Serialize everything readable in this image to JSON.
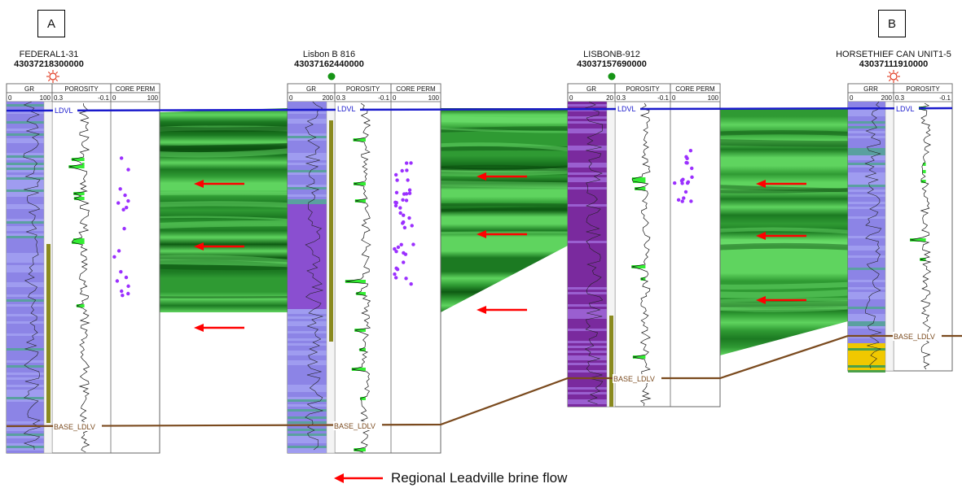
{
  "section_labels": {
    "a": "A",
    "b": "B"
  },
  "wells": [
    {
      "name": "FEDERAL1-31",
      "api": "43037218300000",
      "symbol": "sun-symbol",
      "tracks": [
        {
          "header": "GR",
          "scale_left": "0",
          "scale_right": "100"
        },
        {
          "header": "POROSITY",
          "scale_left": "0.3",
          "scale_right": "-0.1"
        },
        {
          "header": "CORE PERM",
          "scale_left": "0",
          "scale_right": "100"
        }
      ]
    },
    {
      "name": "Lisbon B 816",
      "api": "43037162440000",
      "symbol": "green-dot",
      "tracks": [
        {
          "header": "GR",
          "scale_left": "0",
          "scale_right": "200"
        },
        {
          "header": "POROSITY",
          "scale_left": "0.3",
          "scale_right": "-0.1"
        },
        {
          "header": "CORE PERM",
          "scale_left": "0",
          "scale_right": "100"
        }
      ]
    },
    {
      "name": "LISBONB-912",
      "api": "43037157690000",
      "symbol": "green-dot",
      "tracks": [
        {
          "header": "GR",
          "scale_left": "0",
          "scale_right": "20"
        },
        {
          "header": "POROSITY",
          "scale_left": "0.3",
          "scale_right": "-0.1"
        },
        {
          "header": "CORE PERM",
          "scale_left": "0",
          "scale_right": "100"
        }
      ]
    },
    {
      "name": "HORSETHIEF CAN UNIT1-5",
      "api": "43037111910000",
      "symbol": "sun-symbol",
      "tracks": [
        {
          "header": "GRR",
          "scale_left": "0",
          "scale_right": "200"
        },
        {
          "header": "POROSITY",
          "scale_left": "0.3",
          "scale_right": "-0.1"
        }
      ]
    }
  ],
  "horizons": {
    "top": "LDVL",
    "base": "BASE_LDLV"
  },
  "legend": {
    "label": "Regional Leadville brine flow"
  },
  "colors": {
    "gr_fill": "#8c84e6",
    "gr_dark": "#7a2a9e",
    "porosity_fill": "#33ee33",
    "perm_point": "#9b30ff",
    "top_line": "#1a1acc",
    "base_line": "#7a4a1e",
    "flow_arrow": "#ff0000",
    "correlation_dark": "#0d5a12",
    "correlation_light": "#5fd45f",
    "sun_symbol": "#e0341a",
    "well_dot": "#169416"
  }
}
